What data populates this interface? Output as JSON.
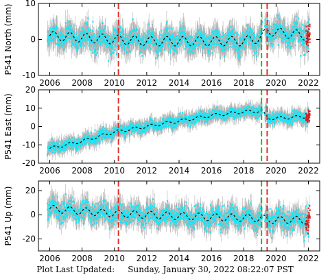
{
  "footer": {
    "label": "Plot Last Updated:",
    "value": "Sunday, January 30, 2022 08:22:07 PST"
  },
  "colors": {
    "observations": "#19e5f5",
    "error_bars": "#b3b3b3",
    "model": "#000000",
    "red_dashed": "#e0302a",
    "green_dashed": "#22bb22",
    "recent_points": "#d81c1c"
  },
  "chart_data": [
    {
      "type": "scatter",
      "ylabel": "P541 North (mm)",
      "xlim": [
        2005.3,
        2022.7
      ],
      "ylim": [
        -10,
        10
      ],
      "yticks": [
        -10,
        0,
        10
      ],
      "xticks": [
        2006,
        2008,
        2010,
        2012,
        2014,
        2016,
        2018,
        2020,
        2022
      ],
      "vertical_lines": [
        {
          "x": 2010.25,
          "color": "red"
        },
        {
          "x": 2019.1,
          "color": "green"
        },
        {
          "x": 2019.45,
          "color": "red"
        }
      ],
      "model": {
        "trend_start": 0.5,
        "trend_end": 1.0,
        "seasonal_amplitude": 1.3
      },
      "obs_scatter": 1.5,
      "error_bar": 2.6,
      "series": [
        {
          "x": [
            2006.0,
            2008.0,
            2010.0,
            2012.0,
            2014.0,
            2016.0,
            2018.0,
            2019.1,
            2019.5,
            2020.0,
            2021.0,
            2022.0
          ],
          "y": [
            1.0,
            0.5,
            0.0,
            -0.5,
            -0.5,
            -0.5,
            -0.5,
            0.5,
            2.5,
            2.0,
            1.5,
            1.0
          ]
        }
      ]
    },
    {
      "type": "scatter",
      "ylabel": "P541 East (mm)",
      "xlim": [
        2005.3,
        2022.7
      ],
      "ylim": [
        -20,
        20
      ],
      "yticks": [
        -20,
        -10,
        0,
        10,
        20
      ],
      "xticks": [
        2006,
        2008,
        2010,
        2012,
        2014,
        2016,
        2018,
        2020,
        2022
      ],
      "vertical_lines": [
        {
          "x": 2010.25,
          "color": "red"
        },
        {
          "x": 2019.1,
          "color": "green"
        },
        {
          "x": 2019.45,
          "color": "red"
        }
      ],
      "model": {
        "trend_start": -12.0,
        "trend_end": 9.0,
        "seasonal_amplitude": 0.8
      },
      "obs_scatter": 1.4,
      "error_bar": 3.0,
      "series": [
        {
          "x": [
            2006.0,
            2008.0,
            2010.0,
            2012.0,
            2014.0,
            2016.0,
            2018.0,
            2019.1,
            2019.5,
            2020.0,
            2021.0,
            2022.0
          ],
          "y": [
            -12.0,
            -8.0,
            -3.0,
            0.0,
            3.0,
            6.0,
            8.0,
            8.5,
            4.5,
            4.5,
            5.0,
            5.5
          ]
        }
      ]
    },
    {
      "type": "scatter",
      "ylabel": "P541 Up (mm)",
      "xlim": [
        2005.3,
        2022.7
      ],
      "ylim": [
        -30,
        28
      ],
      "yticks": [
        -20,
        0,
        20
      ],
      "xticks": [
        2006,
        2008,
        2010,
        2012,
        2014,
        2016,
        2018,
        2020,
        2022
      ],
      "vertical_lines": [
        {
          "x": 2010.25,
          "color": "red"
        },
        {
          "x": 2019.1,
          "color": "green"
        },
        {
          "x": 2019.45,
          "color": "red"
        }
      ],
      "model": {
        "trend_start": 5.0,
        "trend_end": -5.0,
        "seasonal_amplitude": 3.0
      },
      "obs_scatter": 4.0,
      "error_bar": 7.0,
      "series": [
        {
          "x": [
            2006.0,
            2008.0,
            2010.0,
            2012.0,
            2014.0,
            2016.0,
            2018.0,
            2019.1,
            2019.5,
            2020.0,
            2021.0,
            2022.0
          ],
          "y": [
            5.0,
            3.0,
            1.0,
            0.0,
            -1.0,
            -2.0,
            -2.5,
            -3.0,
            -4.0,
            -4.5,
            -4.0,
            -5.0
          ]
        }
      ]
    }
  ]
}
